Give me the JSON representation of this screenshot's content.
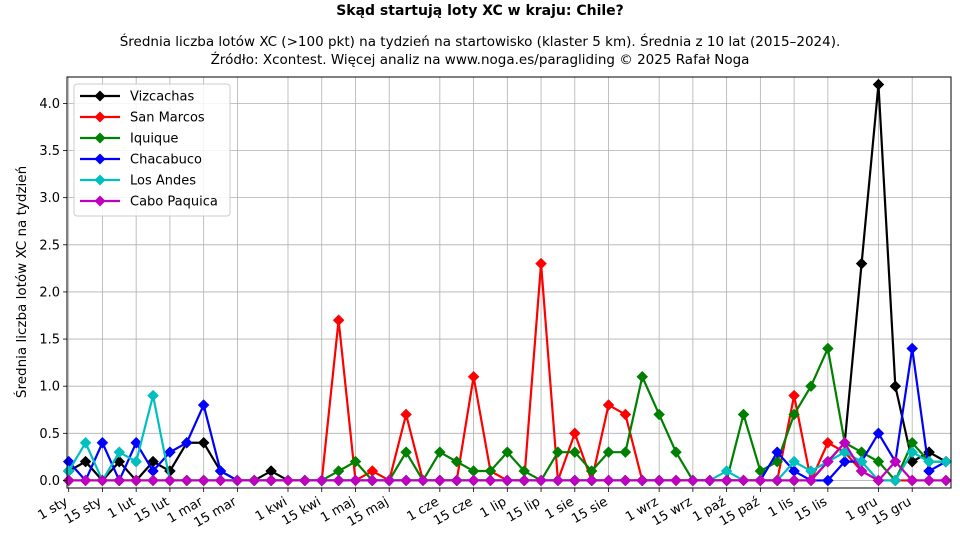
{
  "chart_data": {
    "type": "line",
    "title": "Skąd startują loty XC w kraju: Chile?",
    "subtitle_lines": [
      "Średnia liczba lotów XC (>100 pkt) na tydzień na startowisko (klaster 5 km). Średnia z 10 lat (2015–2024).",
      "Źródło: Xcontest. Więcej analiz na www.noga.es/paragliding © 2025 Rafał Noga"
    ],
    "xlabel": "",
    "ylabel": "Średnia liczba lotów XC na tydzień",
    "x": [
      1,
      2,
      3,
      4,
      5,
      6,
      7,
      8,
      9,
      10,
      11,
      12,
      13,
      14,
      15,
      16,
      17,
      18,
      19,
      20,
      21,
      22,
      23,
      24,
      25,
      26,
      27,
      28,
      29,
      30,
      31,
      32,
      33,
      34,
      35,
      36,
      37,
      38,
      39,
      40,
      41,
      42,
      43,
      44,
      45,
      46,
      47,
      48,
      49,
      50,
      51,
      52,
      53
    ],
    "xlim": [
      0.9,
      53.3
    ],
    "ylim": [
      -0.08,
      4.28
    ],
    "x_ticks": [
      {
        "x": 1,
        "label": "1 sty"
      },
      {
        "x": 3,
        "label": "15 sty"
      },
      {
        "x": 5,
        "label": "1 lut"
      },
      {
        "x": 7,
        "label": "15 lut"
      },
      {
        "x": 9,
        "label": "1 mar"
      },
      {
        "x": 11,
        "label": "15 mar"
      },
      {
        "x": 14,
        "label": "1 kwi"
      },
      {
        "x": 16,
        "label": "15 kwi"
      },
      {
        "x": 18,
        "label": "1 maj"
      },
      {
        "x": 20,
        "label": "15 maj"
      },
      {
        "x": 23,
        "label": "1 cze"
      },
      {
        "x": 25,
        "label": "15 cze"
      },
      {
        "x": 27,
        "label": "1 lip"
      },
      {
        "x": 29,
        "label": "15 lip"
      },
      {
        "x": 31,
        "label": "1 sie"
      },
      {
        "x": 33,
        "label": "15 sie"
      },
      {
        "x": 36,
        "label": "1 wrz"
      },
      {
        "x": 38,
        "label": "15 wrz"
      },
      {
        "x": 40,
        "label": "1 paź"
      },
      {
        "x": 42,
        "label": "15 paź"
      },
      {
        "x": 44,
        "label": "1 lis"
      },
      {
        "x": 46,
        "label": "15 lis"
      },
      {
        "x": 49,
        "label": "1 gru"
      },
      {
        "x": 51,
        "label": "15 gru"
      }
    ],
    "y_ticks": [
      "0.0",
      "0.5",
      "1.0",
      "1.5",
      "2.0",
      "2.5",
      "3.0",
      "3.5",
      "4.0"
    ],
    "grid": true,
    "legend_position": "top-left",
    "series": [
      {
        "name": "Vizcachas",
        "color": "#000000",
        "values": [
          0.1,
          0.2,
          0,
          0.2,
          0,
          0.2,
          0.1,
          0.4,
          0.4,
          0.1,
          0,
          0,
          0.1,
          0,
          0,
          0,
          0,
          0,
          0,
          0,
          0,
          0,
          0,
          0,
          0,
          0,
          0,
          0,
          0,
          0,
          0,
          0,
          0,
          0,
          0,
          0,
          0,
          0,
          0,
          0,
          0,
          0,
          0,
          0,
          0,
          0.2,
          0.4,
          2.3,
          4.2,
          1.0,
          0.2,
          0.3,
          0.2
        ]
      },
      {
        "name": "San Marcos",
        "color": "#ff0000",
        "values": [
          0,
          0,
          0,
          0,
          0,
          0,
          0,
          0,
          0,
          0,
          0,
          0,
          0,
          0,
          0,
          0,
          1.7,
          0,
          0.1,
          0,
          0.7,
          0,
          0,
          0,
          1.1,
          0.1,
          0,
          0,
          2.3,
          0,
          0.5,
          0,
          0.8,
          0.7,
          0,
          0,
          0,
          0,
          0,
          0,
          0,
          0,
          0,
          0.9,
          0,
          0.4,
          0.3,
          0.1,
          0,
          0,
          0,
          0,
          0
        ]
      },
      {
        "name": "Iquique",
        "color": "#008000",
        "values": [
          0,
          0,
          0,
          0,
          0,
          0,
          0,
          0,
          0,
          0,
          0,
          0,
          0,
          0,
          0,
          0,
          0.1,
          0.2,
          0,
          0,
          0.3,
          0,
          0.3,
          0.2,
          0.1,
          0.1,
          0.3,
          0.1,
          0,
          0.3,
          0.3,
          0.1,
          0.3,
          0.3,
          1.1,
          0.7,
          0.3,
          0,
          0,
          0,
          0.7,
          0.1,
          0.2,
          0.7,
          1.0,
          1.4,
          0.4,
          0.3,
          0.2,
          0,
          0.4,
          0.2,
          0.2
        ]
      },
      {
        "name": "Chacabuco",
        "color": "#0000ff",
        "values": [
          0.2,
          0,
          0.4,
          0,
          0.4,
          0.1,
          0.3,
          0.4,
          0.8,
          0.1,
          0,
          0,
          0,
          0,
          0,
          0,
          0,
          0,
          0,
          0,
          0,
          0,
          0,
          0,
          0,
          0,
          0,
          0,
          0,
          0,
          0,
          0,
          0,
          0,
          0,
          0,
          0,
          0,
          0,
          0,
          0,
          0,
          0.3,
          0.1,
          0,
          0,
          0.2,
          0.2,
          0.5,
          0.2,
          1.4,
          0.1,
          0.2
        ]
      },
      {
        "name": "Los Andes",
        "color": "#00bfbf",
        "values": [
          0.1,
          0.4,
          0,
          0.3,
          0.2,
          0.9,
          0,
          0,
          0,
          0,
          0,
          0,
          0,
          0,
          0,
          0,
          0,
          0,
          0,
          0,
          0,
          0,
          0,
          0,
          0,
          0,
          0,
          0,
          0,
          0,
          0,
          0,
          0,
          0,
          0,
          0,
          0,
          0,
          0,
          0.1,
          0,
          0,
          0,
          0.2,
          0.1,
          0.2,
          0.3,
          0.2,
          0,
          0,
          0.3,
          0.2,
          0.2
        ]
      },
      {
        "name": "Cabo Paquica",
        "color": "#bf00bf",
        "values": [
          0,
          0,
          0,
          0,
          0,
          0,
          0,
          0,
          0,
          0,
          0,
          0,
          0,
          0,
          0,
          0,
          0,
          0,
          0,
          0,
          0,
          0,
          0,
          0,
          0,
          0,
          0,
          0,
          0,
          0,
          0,
          0,
          0,
          0,
          0,
          0,
          0,
          0,
          0,
          0,
          0,
          0,
          0,
          0,
          0,
          0.2,
          0.4,
          0.1,
          0,
          0.2,
          0,
          0,
          0
        ]
      }
    ]
  }
}
